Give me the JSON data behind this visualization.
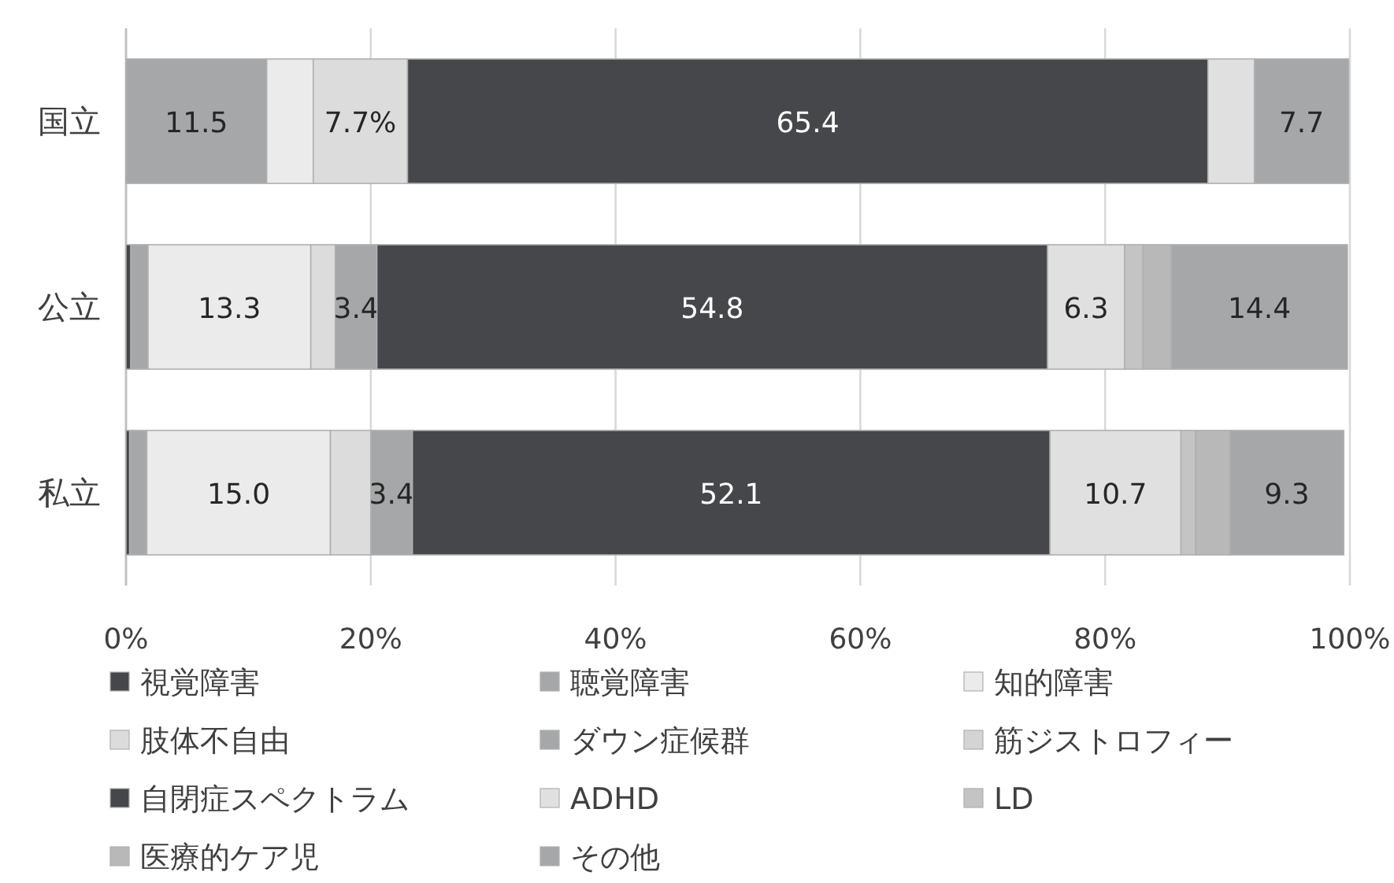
{
  "chart_data": {
    "type": "bar",
    "orientation": "horizontal",
    "stacked": true,
    "categories": [
      "国立",
      "公立",
      "私立"
    ],
    "xlim": [
      0,
      100
    ],
    "xticks": [
      {
        "value": 0,
        "label": "0%"
      },
      {
        "value": 20,
        "label": "20%"
      },
      {
        "value": 40,
        "label": "40%"
      },
      {
        "value": 60,
        "label": "60%"
      },
      {
        "value": 80,
        "label": "80%"
      },
      {
        "value": 100,
        "label": "100%"
      }
    ],
    "grid": "x",
    "legend": "bottom",
    "series": [
      {
        "name": "視覚障害",
        "color": "#46474a",
        "values": [
          0,
          0.4,
          0.3
        ]
      },
      {
        "name": "聴覚障害",
        "color": "#a6a7a9",
        "values": [
          11.5,
          1.4,
          1.4
        ],
        "value_labels": [
          "11.5",
          null,
          null
        ]
      },
      {
        "name": "知的障害",
        "color": "#ebebeb",
        "values": [
          3.8,
          13.3,
          15.0
        ],
        "value_labels": [
          null,
          "13.3",
          "15.0"
        ]
      },
      {
        "name": "肢体不自由",
        "color": "#dcdcdc",
        "values": [
          7.7,
          2.0,
          3.3
        ],
        "value_labels": [
          "7.7%",
          null,
          null
        ]
      },
      {
        "name": "ダウン症候群",
        "color": "#a6a7a9",
        "values": [
          0,
          3.4,
          3.4
        ],
        "value_labels": [
          null,
          "3.4",
          "3.4"
        ]
      },
      {
        "name": "筋ジストロフィー",
        "color": "#d4d4d4",
        "values": [
          0,
          0,
          0
        ]
      },
      {
        "name": "自閉症スペクトラム",
        "color": "#46474a",
        "values": [
          65.4,
          54.8,
          52.1
        ],
        "value_labels": [
          "65.4",
          "54.8",
          "52.1"
        ]
      },
      {
        "name": "ADHD",
        "color": "#e0e0e0",
        "values": [
          3.8,
          6.3,
          10.7
        ],
        "value_labels": [
          null,
          "6.3",
          "10.7"
        ]
      },
      {
        "name": "LD",
        "color": "#c4c4c4",
        "values": [
          0,
          1.5,
          1.2
        ]
      },
      {
        "name": "医療的ケア児",
        "color": "#b8b8b8",
        "values": [
          0,
          2.3,
          2.8
        ]
      },
      {
        "name": "その他",
        "color": "#a6a7a9",
        "values": [
          7.7,
          14.4,
          9.3
        ],
        "value_labels": [
          "7.7",
          "14.4",
          "9.3"
        ]
      }
    ]
  }
}
